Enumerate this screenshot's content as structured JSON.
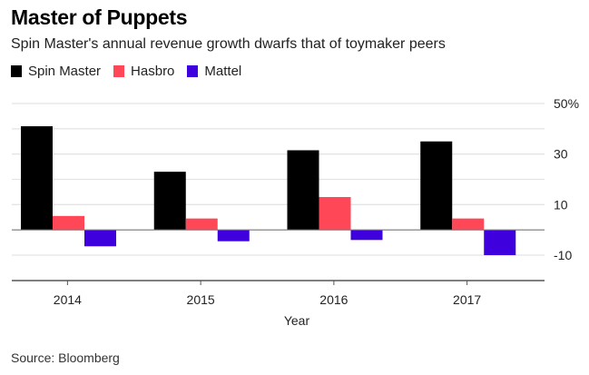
{
  "chart_data": {
    "type": "bar",
    "title": "Master of Puppets",
    "subtitle": "Spin Master's annual revenue growth dwarfs that of toymaker peers",
    "xlabel": "Year",
    "ylabel": "",
    "categories": [
      "2014",
      "2015",
      "2016",
      "2017"
    ],
    "series": [
      {
        "name": "Spin Master",
        "color": "#000000",
        "values": [
          41,
          23,
          31.5,
          35
        ]
      },
      {
        "name": "Hasbro",
        "color": "#ff4757",
        "values": [
          5.5,
          4.5,
          13,
          4.5
        ]
      },
      {
        "name": "Mattel",
        "color": "#3f00de",
        "values": [
          -6.5,
          -4.5,
          -4,
          -10
        ]
      }
    ],
    "ylim": [
      -10,
      50
    ],
    "yticks": [
      50,
      30,
      10,
      -10
    ],
    "ytick_labels": [
      "50%",
      "30",
      "10",
      "-10"
    ],
    "gridlines": [
      50,
      40,
      30,
      20,
      10,
      -10
    ],
    "grid": true,
    "legend_position": "top-left",
    "source": "Source: Bloomberg"
  }
}
